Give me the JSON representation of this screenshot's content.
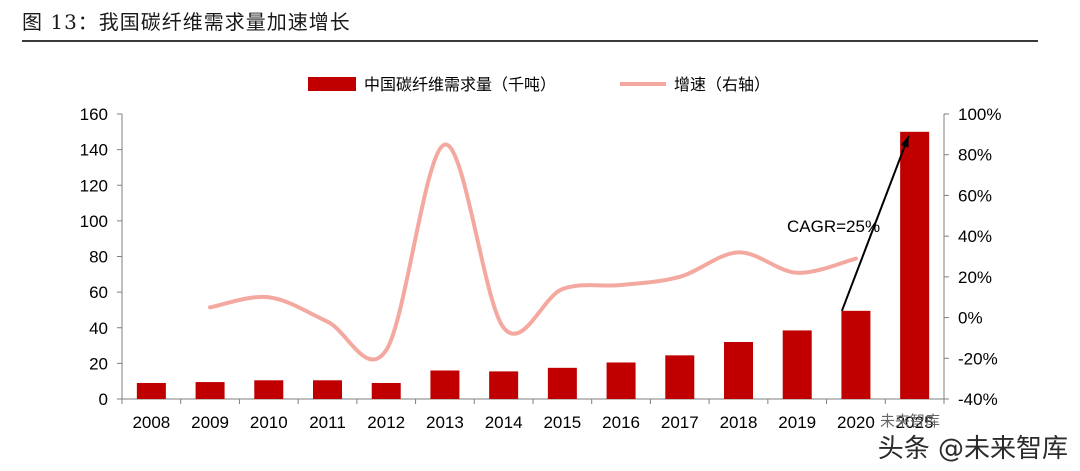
{
  "figure": {
    "title": "图 13：我国碳纤维需求量加速增长",
    "watermark_top": "未来智库",
    "watermark_bottom": "头条 @未来智库"
  },
  "colors": {
    "bar": "#c00000",
    "line": "#f4a9a0",
    "axis": "#7f7f7f",
    "text": "#000000"
  },
  "chart_data": {
    "type": "bar",
    "categories": [
      "2008",
      "2009",
      "2010",
      "2011",
      "2012",
      "2013",
      "2014",
      "2015",
      "2016",
      "2017",
      "2018",
      "2019",
      "2020",
      "2025"
    ],
    "series": [
      {
        "name": "中国碳纤维需求量（千吨）",
        "type": "bar",
        "axis": "left",
        "values": [
          9,
          9.5,
          10.5,
          10.5,
          9,
          16,
          15.5,
          17.5,
          20.5,
          24.5,
          32,
          38.5,
          49.5,
          150
        ]
      },
      {
        "name": "增速（右轴）",
        "type": "line",
        "axis": "right",
        "values": [
          null,
          5,
          10,
          -2,
          -16,
          85,
          -5,
          14,
          16,
          20,
          32,
          22,
          29,
          null
        ]
      }
    ],
    "y_left": {
      "ylim": [
        0,
        160
      ],
      "ticks": [
        "0",
        "20",
        "40",
        "60",
        "80",
        "100",
        "120",
        "140",
        "160"
      ]
    },
    "y_right": {
      "ylim": [
        -40,
        100
      ],
      "ticks": [
        "-40%",
        "-20%",
        "0%",
        "20%",
        "40%",
        "60%",
        "80%",
        "100%"
      ]
    },
    "annotation": {
      "text": "CAGR=25%",
      "from": "2020",
      "to": "2025"
    },
    "legend": "top-center",
    "grid": false
  }
}
